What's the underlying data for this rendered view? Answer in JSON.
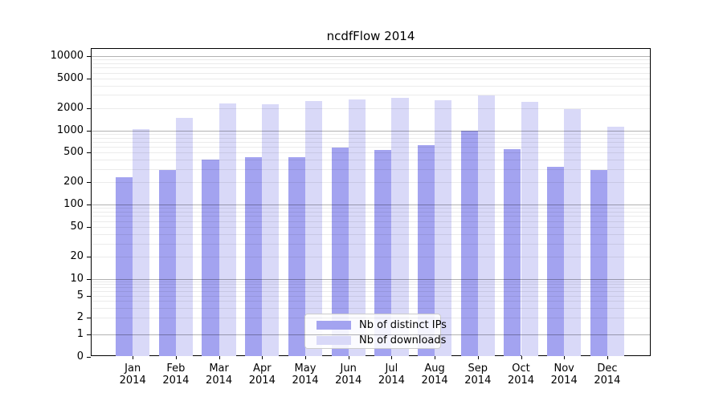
{
  "title": "ncdfFlow 2014",
  "chart_data": {
    "type": "bar",
    "title": "ncdfFlow 2014",
    "categories": [
      "Jan 2014",
      "Feb 2014",
      "Mar 2014",
      "Apr 2014",
      "May 2014",
      "Jun 2014",
      "Jul 2014",
      "Aug 2014",
      "Sep 2014",
      "Oct 2014",
      "Nov 2014",
      "Dec 2014"
    ],
    "series": [
      {
        "name": "Nb of distinct IPs",
        "color": "#a3a3f0",
        "values": [
          235,
          295,
          400,
          435,
          435,
          585,
          540,
          635,
          1000,
          560,
          325,
          295
        ]
      },
      {
        "name": "Nb of downloads",
        "color": "#d9d9f8",
        "values": [
          1050,
          1460,
          2280,
          2260,
          2480,
          2590,
          2720,
          2570,
          2960,
          2430,
          1930,
          1110
        ]
      }
    ],
    "yscale": "symlog",
    "yticks": [
      0,
      1,
      2,
      5,
      10,
      20,
      50,
      100,
      200,
      500,
      1000,
      2000,
      5000,
      10000
    ],
    "ylim": [
      0,
      12700
    ],
    "xlabel": "",
    "ylabel": "",
    "grid": true,
    "grid_style": "major and minor horizontal gridlines drawn on top of bars",
    "legend_position": "lower center"
  },
  "x_labels": [
    {
      "month": "Jan",
      "year": "2014"
    },
    {
      "month": "Feb",
      "year": "2014"
    },
    {
      "month": "Mar",
      "year": "2014"
    },
    {
      "month": "Apr",
      "year": "2014"
    },
    {
      "month": "May",
      "year": "2014"
    },
    {
      "month": "Jun",
      "year": "2014"
    },
    {
      "month": "Jul",
      "year": "2014"
    },
    {
      "month": "Aug",
      "year": "2014"
    },
    {
      "month": "Sep",
      "year": "2014"
    },
    {
      "month": "Oct",
      "year": "2014"
    },
    {
      "month": "Nov",
      "year": "2014"
    },
    {
      "month": "Dec",
      "year": "2014"
    }
  ],
  "colors": {
    "bar_distinct_ips": "#a3a3f0",
    "bar_downloads": "#d9d9f8",
    "grid_major": "rgba(0,0,0,0.30)",
    "grid_minor": "rgba(0,0,0,0.08)",
    "spine": "#000000",
    "legend_border": "#cccccc",
    "background": "#ffffff"
  }
}
